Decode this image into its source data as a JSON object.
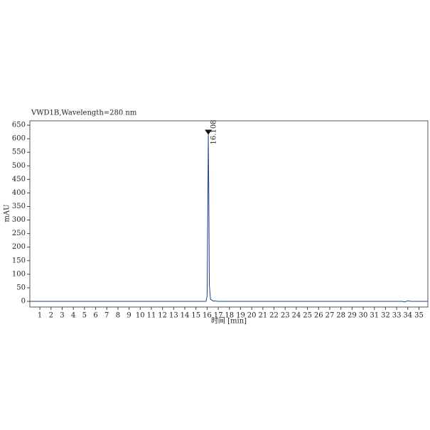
{
  "chart_data": {
    "type": "line",
    "title": "VWD1B,Wavelength=280 nm",
    "ylabel": "mAU",
    "xlabel": "时间 [min]",
    "x": [
      0.1,
      15.9,
      16.0,
      16.05,
      16.108,
      16.15,
      16.2,
      16.3,
      16.5,
      17.0,
      33.5,
      33.7,
      34.0,
      34.3,
      35.8
    ],
    "series": [
      {
        "color": "#1f3f8f",
        "values": [
          0,
          0,
          20,
          300,
          615,
          400,
          60,
          8,
          2,
          0,
          0,
          -2,
          2,
          0,
          0
        ]
      }
    ],
    "peaks": [
      {
        "time": 16.108,
        "label": "16.108",
        "height": 615
      }
    ],
    "xlim": [
      0.1,
      35.8
    ],
    "ylim": [
      -21,
      666
    ],
    "xticks": [
      1,
      2,
      3,
      4,
      5,
      6,
      7,
      8,
      9,
      10,
      11,
      12,
      13,
      14,
      15,
      16,
      17,
      18,
      19,
      20,
      21,
      22,
      23,
      24,
      25,
      26,
      27,
      28,
      29,
      30,
      31,
      32,
      33,
      34,
      35
    ],
    "yticks": [
      0,
      50,
      100,
      150,
      200,
      250,
      300,
      350,
      400,
      450,
      500,
      550,
      600,
      650
    ]
  }
}
